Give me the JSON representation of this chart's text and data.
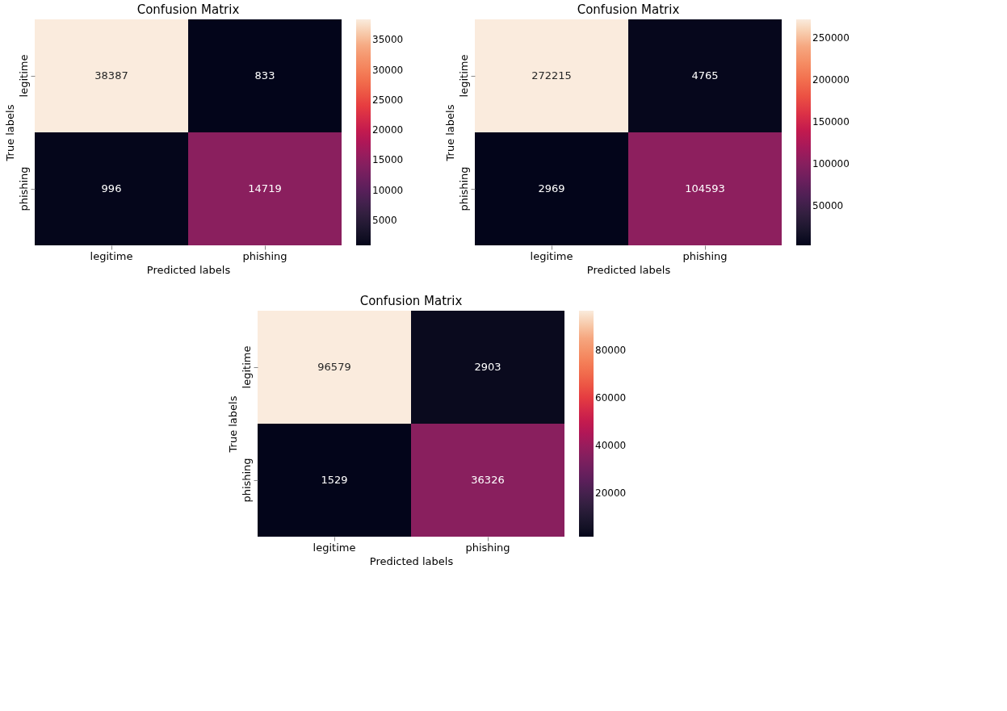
{
  "chart_data": [
    {
      "type": "heatmap",
      "title": "Confusion Matrix",
      "xlabel": "Predicted labels",
      "ylabel": "True labels",
      "categories": [
        "legitime",
        "phishing"
      ],
      "y_categories": [
        "legitime",
        "phishing"
      ],
      "cells": [
        [
          38387,
          833
        ],
        [
          996,
          14719
        ]
      ],
      "data_labels": true,
      "clim": [
        833,
        38387
      ],
      "cticks": [
        5000,
        10000,
        15000,
        20000,
        25000,
        30000,
        35000
      ]
    },
    {
      "type": "heatmap",
      "title": "Confusion Matrix",
      "xlabel": "Predicted labels",
      "ylabel": "True labels",
      "categories": [
        "legitime",
        "phishing"
      ],
      "y_categories": [
        "legitime",
        "phishing"
      ],
      "cells": [
        [
          272215,
          4765
        ],
        [
          2969,
          104593
        ]
      ],
      "data_labels": true,
      "clim": [
        2969,
        272215
      ],
      "cticks": [
        50000,
        100000,
        150000,
        200000,
        250000
      ]
    },
    {
      "type": "heatmap",
      "title": "Confusion Matrix",
      "xlabel": "Predicted labels",
      "ylabel": "True labels",
      "categories": [
        "legitime",
        "phishing"
      ],
      "y_categories": [
        "legitime",
        "phishing"
      ],
      "cells": [
        [
          96579,
          2903
        ],
        [
          1529,
          36326
        ]
      ],
      "data_labels": true,
      "clim": [
        1529,
        96579
      ],
      "cticks": [
        20000,
        40000,
        60000,
        80000
      ]
    }
  ]
}
